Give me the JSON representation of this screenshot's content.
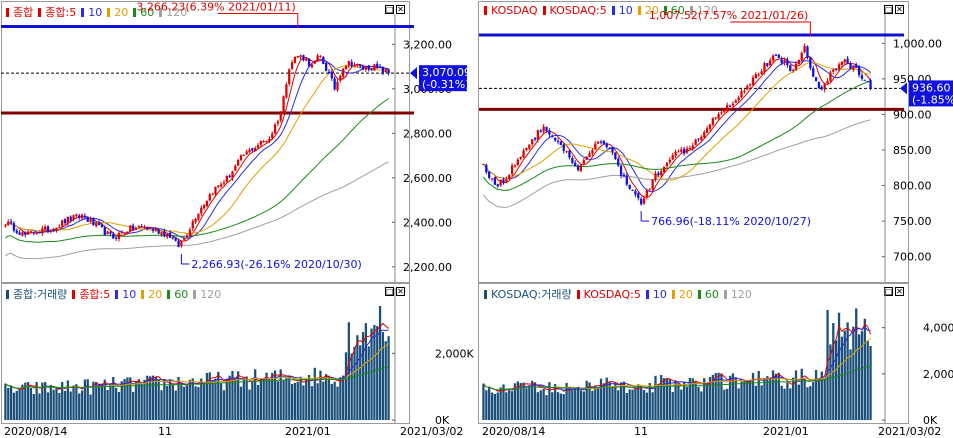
{
  "charts": [
    {
      "id": "kospi",
      "price_legend": [
        {
          "label": "종합",
          "color": "#e00000"
        },
        {
          "label": "종합:5",
          "color": "#e00000"
        },
        {
          "label": "10",
          "color": "#2a2ae0"
        },
        {
          "label": "20",
          "color": "#e0a000"
        },
        {
          "label": "60",
          "color": "#1a8a1a"
        },
        {
          "label": "120",
          "color": "#a0a0a0"
        }
      ],
      "volume_legend": [
        {
          "label": "종합:거래량",
          "color": "#1a4f7a"
        },
        {
          "label": "종합:5",
          "color": "#e00000"
        },
        {
          "label": "10",
          "color": "#2a2ae0"
        },
        {
          "label": "20",
          "color": "#e0a000"
        },
        {
          "label": "60",
          "color": "#1a8a1a"
        },
        {
          "label": "120",
          "color": "#a0a0a0"
        }
      ],
      "price_ticks": [
        "3,200.00",
        "3,000.00",
        "2,800.00",
        "2,600.00",
        "2,400.00",
        "2,200.00"
      ],
      "volume_ticks": [
        "2,000K",
        "0K"
      ],
      "current_value": "3,070.09",
      "current_change": "(-0.31%)",
      "high_annotation": "3,266.23(6.39% 2021/01/11)",
      "low_annotation": "2,266.93(-26.16% 2020/10/30)",
      "x_labels": [
        "2020/08/14",
        "11",
        "2021/01",
        "2021/03/02"
      ],
      "buttons": {
        "restore": "□",
        "close": "✕"
      }
    },
    {
      "id": "kosdaq",
      "price_legend": [
        {
          "label": "KOSDAQ",
          "color": "#e00000"
        },
        {
          "label": "KOSDAQ:5",
          "color": "#e00000"
        },
        {
          "label": "10",
          "color": "#2a2ae0"
        },
        {
          "label": "20",
          "color": "#e0a000"
        },
        {
          "label": "60",
          "color": "#1a8a1a"
        },
        {
          "label": "120",
          "color": "#a0a0a0"
        }
      ],
      "volume_legend": [
        {
          "label": "KOSDAQ:거래량",
          "color": "#1a4f7a"
        },
        {
          "label": "KOSDAQ:5",
          "color": "#e00000"
        },
        {
          "label": "10",
          "color": "#2a2ae0"
        },
        {
          "label": "20",
          "color": "#e0a000"
        },
        {
          "label": "60",
          "color": "#1a8a1a"
        },
        {
          "label": "120",
          "color": "#a0a0a0"
        }
      ],
      "price_ticks": [
        "1,000.00",
        "950.00",
        "900.00",
        "850.00",
        "800.00",
        "750.00",
        "700.00"
      ],
      "volume_ticks": [
        "4,000K",
        "2,000K",
        "0K"
      ],
      "current_value": "936.60",
      "current_change": "(-1.85%)",
      "high_annotation": "1,007.52(7.57% 2021/01/26)",
      "low_annotation": "766.96(-18.11% 2020/10/27)",
      "x_labels": [
        "2020/08/14",
        "11",
        "2021/01",
        "2021/03/02"
      ],
      "buttons": {
        "restore": "□",
        "close": "✕"
      }
    }
  ],
  "chart_data": [
    {
      "type": "candlestick",
      "title": "종합",
      "x_start": "2020/08/14",
      "x_end": "2021/03/02",
      "ylim": [
        2150,
        3300
      ],
      "y_ticks": [
        3200,
        3000,
        2800,
        2600,
        2400,
        2200
      ],
      "current": 3070.09,
      "change_pct": -0.31,
      "high": {
        "value": 3266.23,
        "pct": 6.39,
        "date": "2021/01/11"
      },
      "low": {
        "value": 2266.93,
        "pct": -26.16,
        "date": "2020/10/30"
      },
      "moving_averages": [
        5,
        10,
        20,
        60,
        120
      ],
      "close_path": [
        {
          "t": 0.0,
          "v": 2400
        },
        {
          "t": 0.02,
          "v": 2380
        },
        {
          "t": 0.05,
          "v": 2340
        },
        {
          "t": 0.08,
          "v": 2360
        },
        {
          "t": 0.12,
          "v": 2370
        },
        {
          "t": 0.16,
          "v": 2410
        },
        {
          "t": 0.2,
          "v": 2430
        },
        {
          "t": 0.24,
          "v": 2380
        },
        {
          "t": 0.28,
          "v": 2330
        },
        {
          "t": 0.32,
          "v": 2370
        },
        {
          "t": 0.36,
          "v": 2380
        },
        {
          "t": 0.4,
          "v": 2360
        },
        {
          "t": 0.43,
          "v": 2340
        },
        {
          "t": 0.45,
          "v": 2290
        },
        {
          "t": 0.47,
          "v": 2340
        },
        {
          "t": 0.5,
          "v": 2440
        },
        {
          "t": 0.54,
          "v": 2540
        },
        {
          "t": 0.58,
          "v": 2600
        },
        {
          "t": 0.62,
          "v": 2700
        },
        {
          "t": 0.66,
          "v": 2750
        },
        {
          "t": 0.69,
          "v": 2780
        },
        {
          "t": 0.72,
          "v": 2900
        },
        {
          "t": 0.74,
          "v": 3100
        },
        {
          "t": 0.76,
          "v": 3150
        },
        {
          "t": 0.78,
          "v": 3140
        },
        {
          "t": 0.8,
          "v": 3100
        },
        {
          "t": 0.82,
          "v": 3150
        },
        {
          "t": 0.84,
          "v": 3080
        },
        {
          "t": 0.86,
          "v": 3000
        },
        {
          "t": 0.88,
          "v": 3100
        },
        {
          "t": 0.9,
          "v": 3120
        },
        {
          "t": 0.93,
          "v": 3090
        },
        {
          "t": 0.96,
          "v": 3100
        },
        {
          "t": 1.0,
          "v": 3070
        }
      ],
      "volume_ylim": [
        0,
        3600
      ],
      "volume_ticks": [
        2000,
        0
      ]
    },
    {
      "type": "candlestick",
      "title": "KOSDAQ",
      "x_start": "2020/08/14",
      "x_end": "2021/03/02",
      "ylim": [
        670,
        1030
      ],
      "y_ticks": [
        1000,
        950,
        900,
        850,
        800,
        750,
        700
      ],
      "current": 936.6,
      "change_pct": -1.85,
      "high": {
        "value": 1007.52,
        "pct": 7.57,
        "date": "2021/01/26"
      },
      "low": {
        "value": 766.96,
        "pct": -18.11,
        "date": "2020/10/27"
      },
      "moving_averages": [
        5,
        10,
        20,
        60,
        120
      ],
      "close_path": [
        {
          "t": 0.0,
          "v": 830
        },
        {
          "t": 0.03,
          "v": 800
        },
        {
          "t": 0.06,
          "v": 810
        },
        {
          "t": 0.09,
          "v": 840
        },
        {
          "t": 0.12,
          "v": 860
        },
        {
          "t": 0.15,
          "v": 880
        },
        {
          "t": 0.18,
          "v": 870
        },
        {
          "t": 0.21,
          "v": 850
        },
        {
          "t": 0.24,
          "v": 820
        },
        {
          "t": 0.27,
          "v": 840
        },
        {
          "t": 0.3,
          "v": 865
        },
        {
          "t": 0.33,
          "v": 850
        },
        {
          "t": 0.36,
          "v": 810
        },
        {
          "t": 0.39,
          "v": 790
        },
        {
          "t": 0.41,
          "v": 775
        },
        {
          "t": 0.44,
          "v": 810
        },
        {
          "t": 0.48,
          "v": 840
        },
        {
          "t": 0.52,
          "v": 850
        },
        {
          "t": 0.56,
          "v": 870
        },
        {
          "t": 0.6,
          "v": 900
        },
        {
          "t": 0.64,
          "v": 915
        },
        {
          "t": 0.68,
          "v": 940
        },
        {
          "t": 0.72,
          "v": 965
        },
        {
          "t": 0.75,
          "v": 980
        },
        {
          "t": 0.78,
          "v": 975
        },
        {
          "t": 0.8,
          "v": 960
        },
        {
          "t": 0.83,
          "v": 995
        },
        {
          "t": 0.85,
          "v": 960
        },
        {
          "t": 0.87,
          "v": 930
        },
        {
          "t": 0.9,
          "v": 960
        },
        {
          "t": 0.93,
          "v": 975
        },
        {
          "t": 0.96,
          "v": 965
        },
        {
          "t": 1.0,
          "v": 937
        }
      ],
      "volume_ylim": [
        0,
        5200
      ],
      "volume_ticks": [
        4000,
        2000,
        0
      ]
    }
  ]
}
